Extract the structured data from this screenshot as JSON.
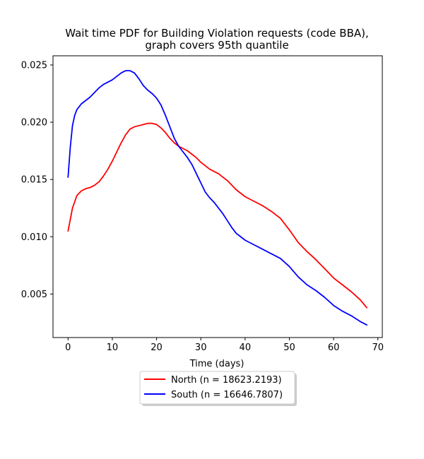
{
  "chart_data": {
    "type": "line",
    "title_line1": "Wait time PDF for Building Violation  requests (code BBA),",
    "title_line2": "graph covers 95th quantile",
    "xlabel": "Time (days)",
    "ylabel": "",
    "xlim": [
      -3.4,
      71
    ],
    "ylim": [
      0.0012,
      0.0258
    ],
    "xticks": [
      0,
      10,
      20,
      30,
      40,
      50,
      60,
      70
    ],
    "xtick_labels": [
      "0",
      "10",
      "20",
      "30",
      "40",
      "50",
      "60",
      "70"
    ],
    "yticks": [
      0.005,
      0.01,
      0.015,
      0.02,
      0.025
    ],
    "ytick_labels": [
      "0.005",
      "0.010",
      "0.015",
      "0.020",
      "0.025"
    ],
    "grid": false,
    "legend_position": "below plot, centered",
    "series": [
      {
        "name": "North (n = 18623.2193)",
        "color": "#ff0000",
        "x": [
          0,
          1,
          2,
          3,
          4,
          5,
          6,
          7,
          8,
          9,
          10,
          11,
          12,
          13,
          14,
          15,
          16,
          17,
          18,
          19,
          20,
          21,
          22,
          23,
          24,
          25,
          26,
          27,
          28,
          29,
          30,
          31,
          32,
          33,
          34,
          35,
          36,
          37,
          38,
          39,
          40,
          42,
          44,
          46,
          48,
          50,
          52,
          54,
          56,
          58,
          60,
          62,
          64,
          66,
          67.5
        ],
        "y": [
          0.0105,
          0.0125,
          0.0136,
          0.014,
          0.0142,
          0.0143,
          0.0145,
          0.0148,
          0.0153,
          0.0159,
          0.0166,
          0.0174,
          0.0182,
          0.0189,
          0.0194,
          0.0196,
          0.0197,
          0.0198,
          0.0199,
          0.0199,
          0.0198,
          0.0195,
          0.0191,
          0.0186,
          0.0182,
          0.0179,
          0.0177,
          0.0175,
          0.0172,
          0.0169,
          0.0165,
          0.0162,
          0.0159,
          0.0157,
          0.0155,
          0.0152,
          0.0149,
          0.0145,
          0.0141,
          0.0138,
          0.0135,
          0.0131,
          0.0127,
          0.0122,
          0.0116,
          0.0106,
          0.0095,
          0.0087,
          0.008,
          0.0072,
          0.0064,
          0.0058,
          0.0052,
          0.0045,
          0.0038
        ]
      },
      {
        "name": "South (n = 16646.7807)",
        "color": "#0000ff",
        "x": [
          0,
          0.5,
          1,
          1.5,
          2,
          3,
          4,
          5,
          6,
          7,
          8,
          9,
          10,
          11,
          12,
          13,
          14,
          15,
          16,
          17,
          18,
          19,
          20,
          21,
          22,
          23,
          24,
          25,
          26,
          27,
          28,
          29,
          30,
          31,
          32,
          33,
          34,
          35,
          36,
          37,
          38,
          39,
          40,
          42,
          44,
          46,
          48,
          50,
          52,
          54,
          56,
          58,
          60,
          62,
          64,
          66,
          67.5
        ],
        "y": [
          0.0152,
          0.0178,
          0.0197,
          0.0206,
          0.0211,
          0.0216,
          0.0219,
          0.0222,
          0.0226,
          0.023,
          0.0233,
          0.0235,
          0.0237,
          0.024,
          0.0243,
          0.0245,
          0.0245,
          0.0243,
          0.0238,
          0.0232,
          0.0228,
          0.0225,
          0.0221,
          0.0215,
          0.0206,
          0.0196,
          0.0186,
          0.0179,
          0.0174,
          0.0169,
          0.0163,
          0.0155,
          0.0147,
          0.0139,
          0.0134,
          0.013,
          0.0125,
          0.012,
          0.0114,
          0.0108,
          0.0103,
          0.01,
          0.0097,
          0.0093,
          0.0089,
          0.0085,
          0.0081,
          0.0074,
          0.0065,
          0.0058,
          0.0053,
          0.0047,
          0.004,
          0.0035,
          0.0031,
          0.0026,
          0.0023
        ]
      }
    ]
  }
}
